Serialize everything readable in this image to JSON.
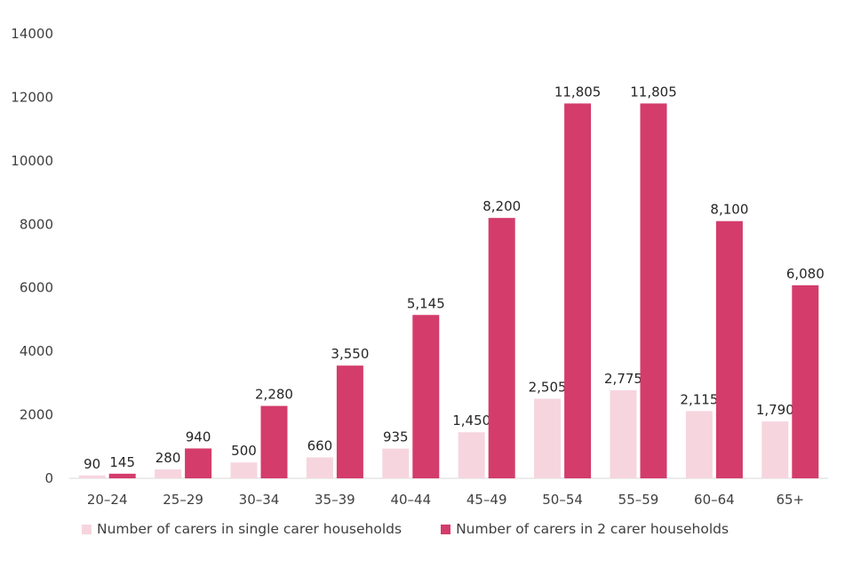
{
  "chart_data": {
    "type": "bar",
    "categories": [
      "20–24",
      "25–29",
      "30–34",
      "35–39",
      "40–44",
      "45–49",
      "50–54",
      "55–59",
      "60–64",
      "65+"
    ],
    "series": [
      {
        "name": "Number of carers in single carer households",
        "values": [
          90,
          280,
          500,
          660,
          935,
          1450,
          2505,
          2775,
          2115,
          1790
        ],
        "labels": [
          "90",
          "280",
          "500",
          "660",
          "935",
          "1,450",
          "2,505",
          "2,775",
          "2,115",
          "1,790"
        ],
        "color": "#f6d5df"
      },
      {
        "name": "Number of carers in 2 carer households",
        "values": [
          145,
          940,
          2280,
          3550,
          5145,
          8200,
          11805,
          11805,
          8100,
          6080
        ],
        "labels": [
          "145",
          "940",
          "2,280",
          "3,550",
          "5,145",
          "8,200",
          "11,805",
          "11,805",
          "8,100",
          "6,080"
        ],
        "color": "#d33c6b"
      }
    ],
    "yticks": [
      "0",
      "2000",
      "4000",
      "6000",
      "8000",
      "10000",
      "12000",
      "14000"
    ],
    "ylim": [
      0,
      14000
    ],
    "grid": false,
    "legend": "bottom"
  }
}
